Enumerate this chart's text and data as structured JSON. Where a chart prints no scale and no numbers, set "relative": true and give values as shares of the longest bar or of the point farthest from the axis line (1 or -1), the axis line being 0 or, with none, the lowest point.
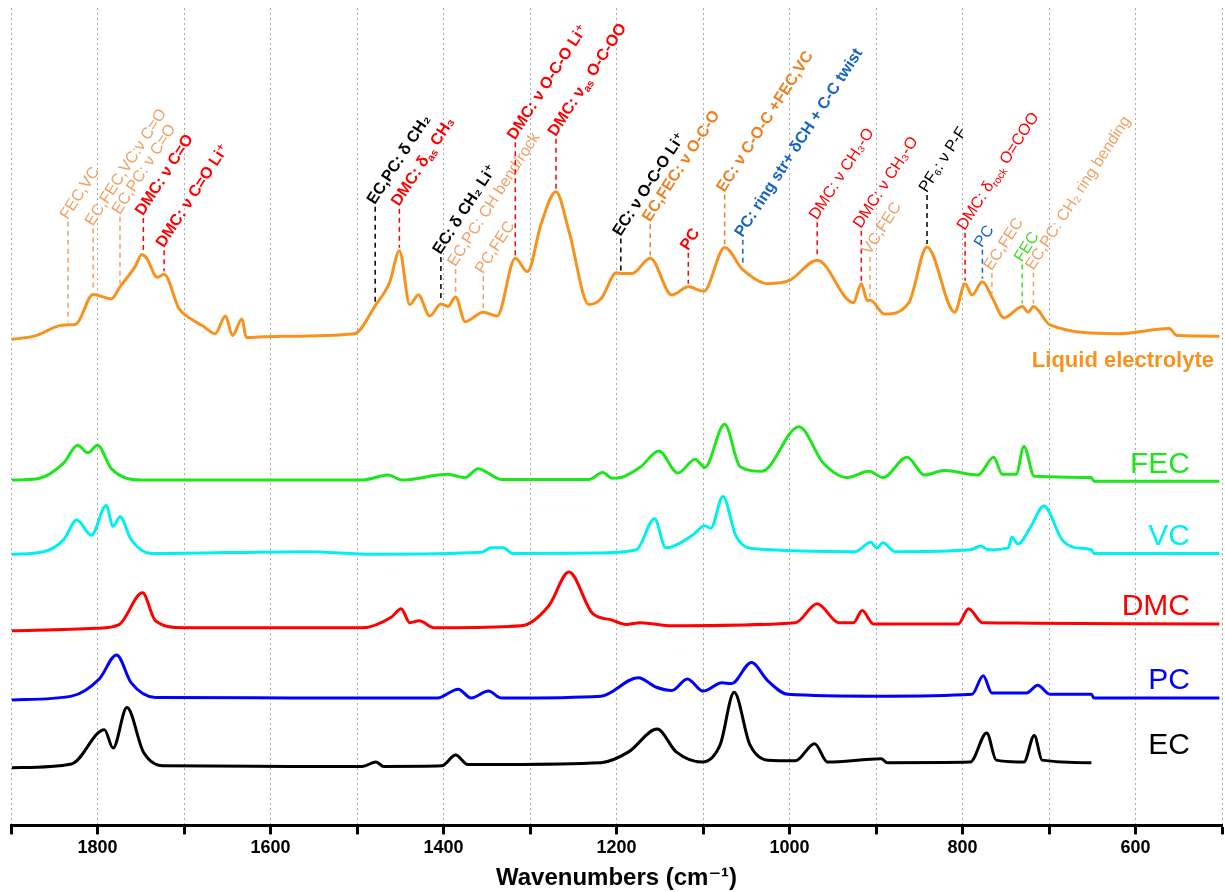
{
  "chart_data": {
    "type": "line",
    "relative": true,
    "xlabel": "Wavenumbers (cm⁻¹)",
    "xlim": [
      1900,
      500
    ],
    "xticks": [
      {
        "value": 1900,
        "label": null
      },
      1800,
      {
        "value": 1700,
        "label": null
      },
      1600,
      {
        "value": 1500,
        "label": null
      },
      1400,
      {
        "value": 1300,
        "label": null
      },
      1200,
      {
        "value": 1100,
        "label": null
      },
      1000,
      {
        "value": 900,
        "label": null
      },
      800,
      {
        "value": 700,
        "label": null
      },
      600,
      {
        "value": 500,
        "label": null
      }
    ],
    "grid": "x",
    "legend": false,
    "series": [
      {
        "name": "Liquid electrolyte",
        "color": "#f7921e",
        "x": [
          1899,
          1871,
          1846,
          1834,
          1825,
          1805,
          1784,
          1774,
          1756,
          1749,
          1747,
          1743,
          1731,
          1723,
          1706,
          1697,
          1678,
          1664,
          1652,
          1644,
          1633,
          1628,
          1586,
          1503,
          1479,
          1462,
          1451,
          1439,
          1429,
          1416,
          1403,
          1395,
          1386,
          1375,
          1354,
          1338,
          1317,
          1303,
          1287,
          1270,
          1255,
          1232,
          1218,
          1200,
          1195,
          1182,
          1161,
          1136,
          1117,
          1099,
          1075,
          1054,
          1025,
          1000,
          968,
          926,
          917,
          910,
          907,
          890,
          862,
          841,
          809,
          797,
          789,
          777,
          766,
          752,
          731,
          724,
          718,
          699,
          621,
          561,
          552,
          503
        ],
        "values": [
          0.767,
          0.773,
          0.788,
          0.79,
          0.791,
          0.838,
          0.831,
          0.85,
          0.883,
          0.901,
          0.9,
          0.895,
          0.865,
          0.87,
          0.816,
          0.804,
          0.788,
          0.776,
          0.804,
          0.773,
          0.799,
          0.77,
          0.772,
          0.776,
          0.82,
          0.858,
          0.907,
          0.822,
          0.837,
          0.804,
          0.823,
          0.819,
          0.834,
          0.795,
          0.81,
          0.804,
          0.895,
          0.874,
          0.95,
          1.0,
          0.938,
          0.822,
          0.831,
          0.872,
          0.871,
          0.871,
          0.895,
          0.837,
          0.85,
          0.843,
          0.912,
          0.877,
          0.855,
          0.86,
          0.892,
          0.825,
          0.855,
          0.828,
          0.829,
          0.807,
          0.825,
          0.913,
          0.81,
          0.855,
          0.837,
          0.858,
          0.834,
          0.801,
          0.819,
          0.81,
          0.819,
          0.79,
          0.776,
          0.784,
          0.773,
          0.772
        ]
      },
      {
        "name": "FEC",
        "color": "#1de61d",
        "x": [
          1899,
          1867,
          1839,
          1823,
          1811,
          1800,
          1784,
          1749,
          1494,
          1464,
          1448,
          1395,
          1375,
          1360,
          1333,
          1232,
          1216,
          1205,
          1195,
          1172,
          1151,
          1129,
          1109,
          1098,
          1075,
          1057,
          1032,
          989,
          961,
          933,
          908,
          892,
          864,
          844,
          821,
          782,
          764,
          754,
          738,
          729,
          717,
          651,
          648,
          503
        ],
        "values": [
          0.545,
          0.548,
          0.572,
          0.6,
          0.588,
          0.6,
          0.563,
          0.545,
          0.545,
          0.553,
          0.545,
          0.554,
          0.549,
          0.563,
          0.546,
          0.546,
          0.557,
          0.548,
          0.549,
          0.566,
          0.591,
          0.556,
          0.578,
          0.565,
          0.633,
          0.566,
          0.559,
          0.629,
          0.572,
          0.549,
          0.559,
          0.549,
          0.581,
          0.553,
          0.56,
          0.553,
          0.581,
          0.554,
          0.554,
          0.598,
          0.551,
          0.549,
          0.543,
          0.543
        ]
      },
      {
        "name": "VC",
        "color": "#00f0f0",
        "x": [
          1899,
          1862,
          1839,
          1824,
          1807,
          1790,
          1782,
          1774,
          1761,
          1738,
          1559,
          1480,
          1356,
          1345,
          1331,
          1320,
          1218,
          1177,
          1156,
          1143,
          1113,
          1098,
          1091,
          1077,
          1062,
          1044,
          924,
          906,
          899,
          892,
          878,
          791,
          779,
          770,
          747,
          743,
          736,
          722,
          706,
          685,
          669,
          651,
          648,
          503
        ],
        "values": [
          0.428,
          0.432,
          0.451,
          0.482,
          0.458,
          0.505,
          0.472,
          0.487,
          0.451,
          0.429,
          0.432,
          0.428,
          0.431,
          0.438,
          0.438,
          0.429,
          0.43,
          0.435,
          0.484,
          0.438,
          0.457,
          0.473,
          0.469,
          0.519,
          0.457,
          0.437,
          0.432,
          0.447,
          0.438,
          0.446,
          0.432,
          0.435,
          0.441,
          0.435,
          0.438,
          0.455,
          0.444,
          0.469,
          0.504,
          0.451,
          0.438,
          0.435,
          0.429,
          0.429
        ]
      },
      {
        "name": "DMC",
        "color": "#ff0000",
        "x": [
          1899,
          1802,
          1775,
          1748,
          1733,
          1701,
          1494,
          1460,
          1449,
          1439,
          1428,
          1411,
          1310,
          1278,
          1255,
          1228,
          1205,
          1189,
          1172,
          1136,
          993,
          968,
          943,
          926,
          916,
          903,
          805,
          793,
          777,
          503
        ],
        "values": [
          0.307,
          0.311,
          0.317,
          0.367,
          0.323,
          0.312,
          0.312,
          0.329,
          0.342,
          0.32,
          0.323,
          0.312,
          0.315,
          0.347,
          0.4,
          0.335,
          0.324,
          0.317,
          0.32,
          0.315,
          0.32,
          0.35,
          0.32,
          0.32,
          0.339,
          0.318,
          0.318,
          0.342,
          0.32,
          0.318
        ]
      },
      {
        "name": "PC",
        "color": "#0000ff",
        "x": [
          1899,
          1830,
          1798,
          1778,
          1761,
          1733,
          1485,
          1407,
          1383,
          1368,
          1348,
          1333,
          1218,
          1175,
          1154,
          1136,
          1118,
          1100,
          1078,
          1067,
          1044,
          1025,
          1002,
          897,
          789,
          776,
          766,
          726,
          713,
          699,
          651,
          648,
          503
        ],
        "values": [
          0.198,
          0.204,
          0.231,
          0.269,
          0.225,
          0.202,
          0.201,
          0.201,
          0.215,
          0.201,
          0.212,
          0.201,
          0.204,
          0.233,
          0.218,
          0.213,
          0.231,
          0.212,
          0.225,
          0.224,
          0.257,
          0.228,
          0.207,
          0.204,
          0.207,
          0.236,
          0.209,
          0.209,
          0.221,
          0.207,
          0.207,
          0.201,
          0.201
        ]
      },
      {
        "name": "EC",
        "color": "#000000",
        "x": [
          1899,
          1830,
          1792,
          1782,
          1766,
          1747,
          1724,
          1494,
          1478,
          1469,
          1402,
          1386,
          1372,
          1218,
          1186,
          1153,
          1131,
          1101,
          1080,
          1064,
          1046,
          1025,
          993,
          971,
          956,
          894,
          887,
          791,
          772,
          761,
          729,
          717,
          708,
          651
        ],
        "values": [
          0.091,
          0.097,
          0.151,
          0.122,
          0.186,
          0.116,
          0.094,
          0.093,
          0.1,
          0.093,
          0.094,
          0.111,
          0.096,
          0.099,
          0.116,
          0.152,
          0.116,
          0.1,
          0.128,
          0.21,
          0.128,
          0.103,
          0.102,
          0.129,
          0.1,
          0.105,
          0.099,
          0.1,
          0.146,
          0.103,
          0.1,
          0.142,
          0.103,
          0.099
        ]
      }
    ],
    "annotations": [
      {
        "text": "FEC,VC",
        "x": 1834,
        "y": 0.79
      },
      {
        "text": "EC,FEC,VC:ν C=O",
        "x": 1805,
        "y": 0.838
      },
      {
        "text": "EC,PC: ν C=O",
        "x": 1774,
        "y": 0.85
      },
      {
        "text": "DMC: ν C=O",
        "x": 1747,
        "y": 0.9
      },
      {
        "text": "DMC: ν C=O Li⁺",
        "x": 1723,
        "y": 0.87
      },
      {
        "text": "EC,PC: δ CH₂",
        "x": 1479,
        "y": 0.82
      },
      {
        "text": "DMC: δ$_{as}$ CH₃",
        "x": 1451,
        "y": 0.907
      },
      {
        "text": "EC: δ CH₂ Li⁺",
        "x": 1403,
        "y": 0.823
      },
      {
        "text": "EC,PC: CH bend/rock",
        "x": 1386,
        "y": 0.834
      },
      {
        "text": "PC,FEC",
        "x": 1354,
        "y": 0.81
      },
      {
        "text": "DMC: ν O-C-O Li⁺",
        "x": 1317,
        "y": 0.895
      },
      {
        "text": "DMC: ν$_{as}$ O-C-OO",
        "x": 1270,
        "y": 1.0
      },
      {
        "text": "EC: ν O-C-O Li⁺",
        "x": 1195,
        "y": 0.871
      },
      {
        "text": "EC,FEC: ν O-C-O",
        "x": 1161,
        "y": 0.895
      },
      {
        "text": "PC",
        "x": 1117,
        "y": 0.85
      },
      {
        "text": "EC: ν C-O-C +FEC,VC",
        "x": 1075,
        "y": 0.912
      },
      {
        "text": "PC: ring str+ δCH + C-C twist",
        "x": 1054,
        "y": 0.877
      },
      {
        "text": "DMC: ν CH₃-O",
        "x": 968,
        "y": 0.892
      },
      {
        "text": "DMC: ν CH₃-O",
        "x": 917,
        "y": 0.855
      },
      {
        "text": "VC,FEC",
        "x": 907,
        "y": 0.829
      },
      {
        "text": "PF₆: ν P-F",
        "x": 841,
        "y": 0.913
      },
      {
        "text": "DMC: δ$_{rock}$ O=COO",
        "x": 797,
        "y": 0.855
      },
      {
        "text": "PC",
        "x": 777,
        "y": 0.858
      },
      {
        "text": "EC,FEC",
        "x": 766,
        "y": 0.834
      },
      {
        "text": "FEC",
        "x": 731,
        "y": 0.819
      },
      {
        "text": "EC,PC: CH₂ ring bending",
        "x": 718,
        "y": 0.819
      }
    ]
  }
}
